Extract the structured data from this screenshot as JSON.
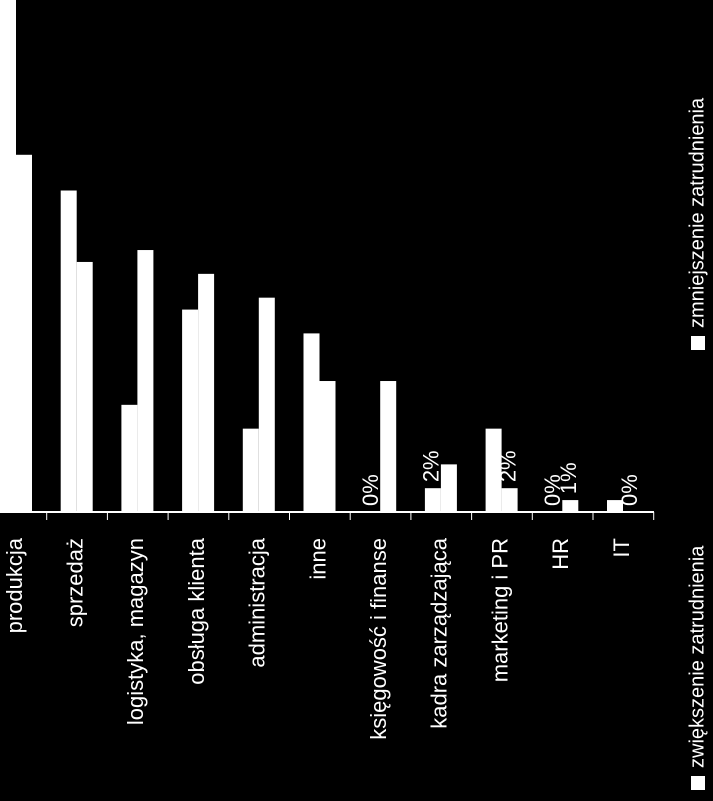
{
  "chart_data": {
    "type": "bar",
    "orientation": "vertical (image rotated 90° clockwise)",
    "categories": [
      "produkcja",
      "sprzedaż",
      "logistyka, magazyn",
      "obsługa klienta",
      "administracja",
      "inne",
      "księgowość i finanse",
      "kadra zarządzająca",
      "marketing i PR",
      "HR",
      "IT"
    ],
    "series": [
      {
        "name": "zwiększenie zatrudnienia",
        "values": [
          43,
          27,
          9,
          17,
          7,
          15,
          0,
          2,
          7,
          0,
          1
        ]
      },
      {
        "name": "zmniejszenie zatrudnienia",
        "values": [
          30,
          21,
          22,
          20,
          18,
          11,
          11,
          4,
          2,
          1,
          0
        ]
      }
    ],
    "data_labels": {
      "zwiększenie zatrudnienia": [
        "",
        "",
        "",
        "",
        "",
        "",
        "0%",
        "2%",
        "",
        "0%",
        ""
      ],
      "zmniejszenie zatrudnienia": [
        "",
        "",
        "",
        "",
        "",
        "",
        "",
        "",
        "2%",
        "1%",
        "0%"
      ]
    },
    "ylim": [
      0,
      43
    ],
    "legend_position": "bottom",
    "colors": {
      "series1": "#ffffff",
      "series2": "#ffffff",
      "background": "#000000",
      "text": "#ffffff"
    }
  }
}
